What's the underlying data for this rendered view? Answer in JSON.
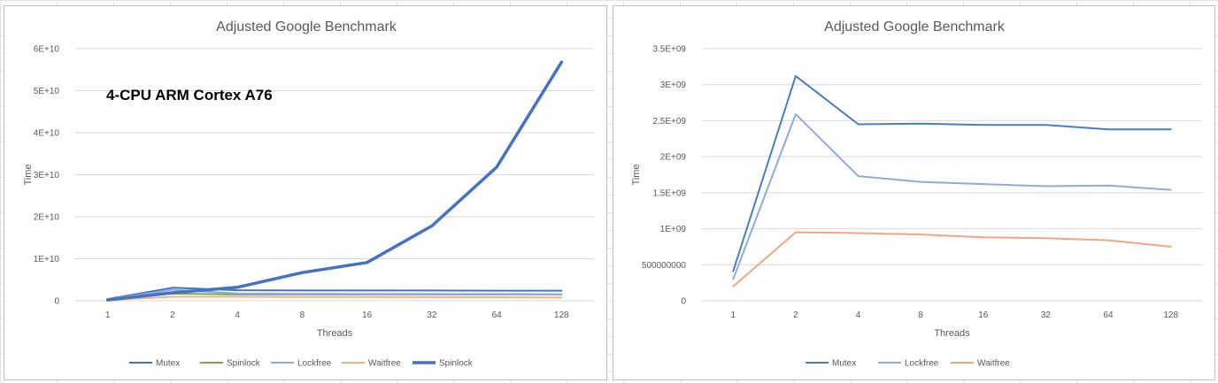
{
  "chart_data": [
    {
      "type": "line",
      "title": "Adjusted Google Benchmark",
      "annotation": "4-CPU ARM Cortex A76",
      "xlabel": "Threads",
      "ylabel": "Time",
      "categories": [
        "1",
        "2",
        "4",
        "8",
        "16",
        "32",
        "64",
        "128"
      ],
      "ylim": [
        0,
        60000000000
      ],
      "yticks": [
        0,
        10000000000,
        20000000000,
        30000000000,
        40000000000,
        50000000000,
        60000000000
      ],
      "ytick_labels": [
        "0",
        "1E+10",
        "2E+10",
        "3E+10",
        "4E+10",
        "5E+10",
        "6E+10"
      ],
      "grid": true,
      "legend_position": "bottom",
      "series": [
        {
          "name": "Mutex",
          "color": "#4472c4",
          "width": 2,
          "values": [
            400000000,
            3100000000,
            2500000000,
            2450000000,
            2450000000,
            2450000000,
            2400000000,
            2400000000
          ]
        },
        {
          "name": "Spinlock",
          "color": "#70ad47",
          "width": 2,
          "values": [
            300000000,
            1700000000,
            1500000000,
            1500000000,
            1500000000,
            1500000000,
            1500000000,
            1500000000
          ]
        },
        {
          "name": "Lockfree",
          "color": "#8faadc",
          "width": 2,
          "values": [
            300000000,
            2600000000,
            1750000000,
            1650000000,
            1600000000,
            1600000000,
            1600000000,
            1550000000
          ]
        },
        {
          "name": "Waitfree",
          "color": "#f4b183",
          "width": 2,
          "values": [
            200000000,
            950000000,
            950000000,
            900000000,
            880000000,
            870000000,
            840000000,
            760000000
          ]
        },
        {
          "name": "Spinlock",
          "color": "#4472c4",
          "width": 3.5,
          "values": [
            200000000,
            1900000000,
            3200000000,
            6700000000,
            9100000000,
            17800000000,
            31800000000,
            56800000000
          ]
        }
      ]
    },
    {
      "type": "line",
      "title": "Adjusted Google Benchmark",
      "xlabel": "Threads",
      "ylabel": "Time",
      "categories": [
        "1",
        "2",
        "4",
        "8",
        "16",
        "32",
        "64",
        "128"
      ],
      "ylim": [
        0,
        3500000000
      ],
      "yticks": [
        0,
        500000000,
        1000000000,
        1500000000,
        2000000000,
        2500000000,
        3000000000,
        3500000000
      ],
      "ytick_labels": [
        "0",
        "500000000",
        "1E+09",
        "1.5E+09",
        "2E+09",
        "2.5E+09",
        "3E+09",
        "3.5E+09"
      ],
      "grid": true,
      "legend_position": "bottom",
      "series": [
        {
          "name": "Mutex",
          "color": "#4a7ebb",
          "width": 2,
          "values": [
            410000000,
            3120000000,
            2450000000,
            2460000000,
            2440000000,
            2440000000,
            2380000000,
            2380000000
          ]
        },
        {
          "name": "Lockfree",
          "color": "#8faadc",
          "width": 2,
          "values": [
            300000000,
            2590000000,
            1730000000,
            1650000000,
            1620000000,
            1590000000,
            1600000000,
            1540000000
          ]
        },
        {
          "name": "Waitfree",
          "color": "#f4a582",
          "width": 2,
          "values": [
            200000000,
            950000000,
            940000000,
            920000000,
            880000000,
            870000000,
            840000000,
            750000000
          ]
        }
      ]
    }
  ]
}
